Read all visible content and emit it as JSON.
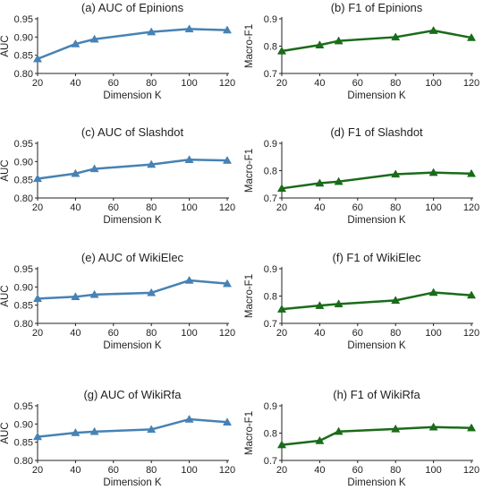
{
  "chart_data": [
    {
      "type": "line",
      "title": "(a) AUC of Epinions",
      "xlabel": "Dimension K",
      "ylabel": "AUC",
      "xlim": [
        20,
        120
      ],
      "ylim": [
        0.8,
        0.95
      ],
      "xticks": [
        20,
        40,
        60,
        80,
        100,
        120
      ],
      "xtick_labels": [
        "20",
        "40",
        "60",
        "80",
        "100",
        "120"
      ],
      "yticks": [
        0.8,
        0.85,
        0.9,
        0.95
      ],
      "ytick_labels": [
        "0.80",
        "0.85",
        "0.90",
        "0.95"
      ],
      "color": "#4682b4",
      "marker": "triangle",
      "grid": false,
      "x": [
        20,
        40,
        50,
        80,
        100,
        120
      ],
      "y": [
        0.84,
        0.881,
        0.894,
        0.914,
        0.922,
        0.919
      ]
    },
    {
      "type": "line",
      "title": "(b) F1 of Epinions",
      "xlabel": "Dimension K",
      "ylabel": "Macro-F1",
      "xlim": [
        20,
        120
      ],
      "ylim": [
        0.7,
        0.9
      ],
      "xticks": [
        20,
        40,
        60,
        80,
        100,
        120
      ],
      "xtick_labels": [
        "20",
        "40",
        "60",
        "80",
        "100",
        "120"
      ],
      "yticks": [
        0.7,
        0.8,
        0.9
      ],
      "ytick_labels": [
        "0.7",
        "0.8",
        "0.9"
      ],
      "color": "#1a6b1a",
      "marker": "triangle",
      "grid": false,
      "x": [
        20,
        40,
        50,
        80,
        100,
        120
      ],
      "y": [
        0.782,
        0.804,
        0.819,
        0.833,
        0.857,
        0.831
      ]
    },
    {
      "type": "line",
      "title": "(c) AUC of Slashdot",
      "xlabel": "Dimension K",
      "ylabel": "AUC",
      "xlim": [
        20,
        120
      ],
      "ylim": [
        0.8,
        0.95
      ],
      "xticks": [
        20,
        40,
        60,
        80,
        100,
        120
      ],
      "xtick_labels": [
        "20",
        "40",
        "60",
        "80",
        "100",
        "120"
      ],
      "yticks": [
        0.8,
        0.85,
        0.9,
        0.95
      ],
      "ytick_labels": [
        "0.80",
        "0.85",
        "0.90",
        "0.95"
      ],
      "color": "#4682b4",
      "marker": "triangle",
      "grid": false,
      "x": [
        20,
        40,
        50,
        80,
        100,
        120
      ],
      "y": [
        0.853,
        0.867,
        0.88,
        0.892,
        0.905,
        0.903
      ]
    },
    {
      "type": "line",
      "title": "(d) F1 of Slashdot",
      "xlabel": "Dimension K",
      "ylabel": "Macro-F1",
      "xlim": [
        20,
        120
      ],
      "ylim": [
        0.7,
        0.9
      ],
      "xticks": [
        20,
        40,
        60,
        80,
        100,
        120
      ],
      "xtick_labels": [
        "20",
        "40",
        "60",
        "80",
        "100",
        "120"
      ],
      "yticks": [
        0.7,
        0.8,
        0.9
      ],
      "ytick_labels": [
        "0.7",
        "0.8",
        "0.9"
      ],
      "color": "#1a6b1a",
      "marker": "triangle",
      "grid": false,
      "x": [
        20,
        40,
        50,
        80,
        100,
        120
      ],
      "y": [
        0.735,
        0.754,
        0.76,
        0.787,
        0.793,
        0.789
      ]
    },
    {
      "type": "line",
      "title": "(e) AUC of WikiElec",
      "xlabel": "Dimension K",
      "ylabel": "AUC",
      "xlim": [
        20,
        120
      ],
      "ylim": [
        0.8,
        0.95
      ],
      "xticks": [
        20,
        40,
        60,
        80,
        100,
        120
      ],
      "xtick_labels": [
        "20",
        "40",
        "60",
        "80",
        "100",
        "120"
      ],
      "yticks": [
        0.8,
        0.85,
        0.9,
        0.95
      ],
      "ytick_labels": [
        "0.80",
        "0.85",
        "0.90",
        "0.95"
      ],
      "color": "#4682b4",
      "marker": "triangle",
      "grid": false,
      "x": [
        20,
        40,
        50,
        80,
        100,
        120
      ],
      "y": [
        0.868,
        0.873,
        0.879,
        0.884,
        0.918,
        0.909
      ]
    },
    {
      "type": "line",
      "title": "(f) F1 of WikiElec",
      "xlabel": "Dimension K",
      "ylabel": "Macro-F1",
      "xlim": [
        20,
        120
      ],
      "ylim": [
        0.7,
        0.9
      ],
      "xticks": [
        20,
        40,
        60,
        80,
        100,
        120
      ],
      "xtick_labels": [
        "20",
        "40",
        "60",
        "80",
        "100",
        "120"
      ],
      "yticks": [
        0.7,
        0.8,
        0.9
      ],
      "ytick_labels": [
        "0.7",
        "0.8",
        "0.9"
      ],
      "color": "#1a6b1a",
      "marker": "triangle",
      "grid": false,
      "x": [
        20,
        40,
        50,
        80,
        100,
        120
      ],
      "y": [
        0.752,
        0.765,
        0.771,
        0.784,
        0.813,
        0.803
      ]
    },
    {
      "type": "line",
      "title": "(g) AUC of WikiRfa",
      "xlabel": "Dimension K",
      "ylabel": "AUC",
      "xlim": [
        20,
        120
      ],
      "ylim": [
        0.8,
        0.95
      ],
      "xticks": [
        20,
        40,
        60,
        80,
        100,
        120
      ],
      "xtick_labels": [
        "20",
        "40",
        "60",
        "80",
        "100",
        "120"
      ],
      "yticks": [
        0.8,
        0.85,
        0.9,
        0.95
      ],
      "ytick_labels": [
        "0.80",
        "0.85",
        "0.90",
        "0.95"
      ],
      "color": "#4682b4",
      "marker": "triangle",
      "grid": false,
      "x": [
        20,
        40,
        50,
        80,
        100,
        120
      ],
      "y": [
        0.865,
        0.876,
        0.879,
        0.885,
        0.913,
        0.905
      ]
    },
    {
      "type": "line",
      "title": "(h) F1 of WikiRfa",
      "xlabel": "Dimension K",
      "ylabel": "Macro-F1",
      "xlim": [
        20,
        120
      ],
      "ylim": [
        0.7,
        0.9
      ],
      "xticks": [
        20,
        40,
        60,
        80,
        100,
        120
      ],
      "xtick_labels": [
        "20",
        "40",
        "60",
        "80",
        "100",
        "120"
      ],
      "yticks": [
        0.7,
        0.8,
        0.9
      ],
      "ytick_labels": [
        "0.7",
        "0.8",
        "0.9"
      ],
      "color": "#1a6b1a",
      "marker": "triangle",
      "grid": false,
      "x": [
        20,
        40,
        50,
        80,
        100,
        120
      ],
      "y": [
        0.757,
        0.772,
        0.806,
        0.815,
        0.822,
        0.819
      ]
    }
  ]
}
